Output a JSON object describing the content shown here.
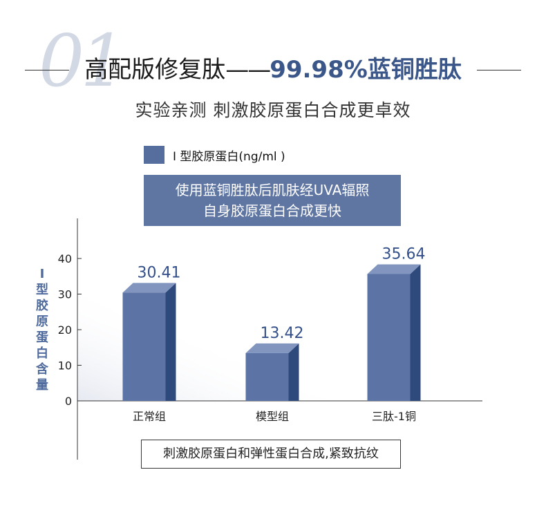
{
  "header": {
    "number": "01",
    "title_main": "高配版修复肽",
    "title_dash": "——",
    "title_highlight": "99.98%蓝铜胜肽",
    "subtitle": "实验亲测 刺激胶原蛋白合成更卓效"
  },
  "note": {
    "line1": "使用蓝铜胜肽后肌肤经UVA辐照",
    "line2": "自身胶原蛋白合成更快"
  },
  "footer": "刺激胶原蛋白和弹性蛋白合成,紧致抗纹",
  "chart_data": {
    "type": "bar",
    "categories": [
      "正常组",
      "模型组",
      "三肽-1铜"
    ],
    "values": [
      30.41,
      13.42,
      35.64
    ],
    "value_labels": [
      "30.41",
      "13.42",
      "35.64"
    ],
    "legend": "I 型胶原蛋白(ng/ml )",
    "ylabel": "I 型胶原蛋白含量",
    "yticks": [
      0,
      10,
      20,
      30,
      40
    ],
    "ylim": [
      0,
      40
    ],
    "grid": false,
    "style": "3d-bar",
    "colors": {
      "front": "#5b74a5",
      "top": "#8195bf",
      "side": "#2e4a7d",
      "label": "#34508a"
    }
  }
}
